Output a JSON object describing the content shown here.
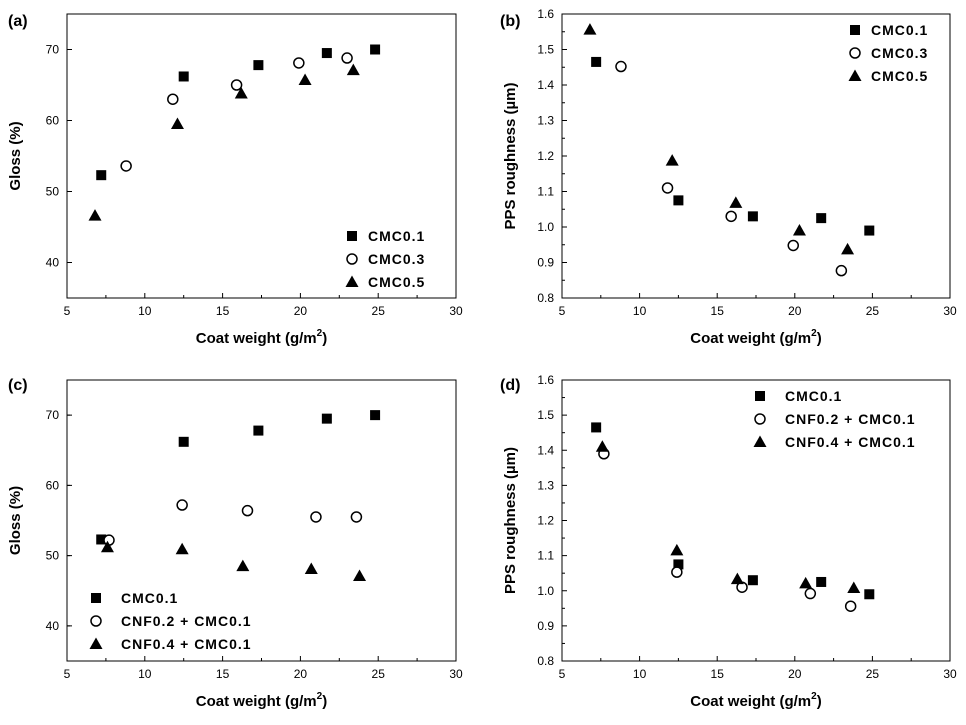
{
  "chart_data": [
    {
      "panel": "(a)",
      "type": "scatter",
      "xlabel": "Coat weight (g/m",
      "xlabel_sup": "2",
      "xlabel_end": ")",
      "ylabel": "Gloss (%)",
      "xlim": [
        5,
        30
      ],
      "ylim": [
        35,
        75
      ],
      "xticks": [
        5,
        10,
        15,
        20,
        25,
        30
      ],
      "yticks": [
        40,
        50,
        60,
        70
      ],
      "legend_position": "bottom-right",
      "series": [
        {
          "name": "CMC0.1",
          "marker": "square",
          "x": [
            7.2,
            12.5,
            17.3,
            21.7,
            24.8
          ],
          "y": [
            52.3,
            66.2,
            67.8,
            69.5,
            70.0
          ]
        },
        {
          "name": "CMC0.3",
          "marker": "circle",
          "x": [
            8.8,
            11.8,
            15.9,
            19.9,
            23.0
          ],
          "y": [
            53.6,
            63.0,
            65.0,
            68.1,
            68.8
          ]
        },
        {
          "name": "CMC0.5",
          "marker": "triangle",
          "x": [
            6.8,
            12.1,
            16.2,
            20.3,
            23.4
          ],
          "y": [
            46.6,
            59.5,
            63.8,
            65.7,
            67.1
          ]
        }
      ]
    },
    {
      "panel": "(b)",
      "type": "scatter",
      "xlabel": "Coat weight (g/m",
      "xlabel_sup": "2",
      "xlabel_end": ")",
      "ylabel": "PPS roughness (µm)",
      "xlim": [
        5,
        30
      ],
      "ylim": [
        0.8,
        1.6
      ],
      "xticks": [
        5,
        10,
        15,
        20,
        25,
        30
      ],
      "yticks": [
        0.8,
        0.9,
        1.0,
        1.1,
        1.2,
        1.3,
        1.4,
        1.5,
        1.6
      ],
      "legend_position": "top-right",
      "series": [
        {
          "name": "CMC0.1",
          "marker": "square",
          "x": [
            7.2,
            12.5,
            17.3,
            21.7,
            24.8
          ],
          "y": [
            1.465,
            1.075,
            1.03,
            1.025,
            0.99
          ]
        },
        {
          "name": "CMC0.3",
          "marker": "circle",
          "x": [
            8.8,
            11.8,
            15.9,
            19.9,
            23.0
          ],
          "y": [
            1.452,
            1.11,
            1.03,
            0.948,
            0.877
          ]
        },
        {
          "name": "CMC0.5",
          "marker": "triangle",
          "x": [
            6.8,
            12.1,
            16.2,
            20.3,
            23.4
          ],
          "y": [
            1.556,
            1.187,
            1.068,
            0.99,
            0.937
          ]
        }
      ]
    },
    {
      "panel": "(c)",
      "type": "scatter",
      "xlabel": "Coat weight (g/m",
      "xlabel_sup": "2",
      "xlabel_end": ")",
      "ylabel": "Gloss (%)",
      "xlim": [
        5,
        30
      ],
      "ylim": [
        35,
        75
      ],
      "xticks": [
        5,
        10,
        15,
        20,
        25,
        30
      ],
      "yticks": [
        40,
        50,
        60,
        70
      ],
      "legend_position": "bottom-left",
      "series": [
        {
          "name": "CMC0.1",
          "marker": "square",
          "x": [
            7.2,
            12.5,
            17.3,
            21.7,
            24.8
          ],
          "y": [
            52.3,
            66.2,
            67.8,
            69.5,
            70.0
          ]
        },
        {
          "name": "CNF0.2 + CMC0.1",
          "marker": "circle",
          "x": [
            7.7,
            12.4,
            16.6,
            21.0,
            23.6
          ],
          "y": [
            52.2,
            57.2,
            56.4,
            55.5,
            55.5
          ]
        },
        {
          "name": "CNF0.4 + CMC0.1",
          "marker": "triangle",
          "x": [
            7.6,
            12.4,
            16.3,
            20.7,
            23.8
          ],
          "y": [
            51.2,
            50.9,
            48.5,
            48.1,
            47.1
          ]
        }
      ]
    },
    {
      "panel": "(d)",
      "type": "scatter",
      "xlabel": "Coat weight (g/m",
      "xlabel_sup": "2",
      "xlabel_end": ")",
      "ylabel": "PPS roughness (µm)",
      "xlim": [
        5,
        30
      ],
      "ylim": [
        0.8,
        1.6
      ],
      "xticks": [
        5,
        10,
        15,
        20,
        25,
        30
      ],
      "yticks": [
        0.8,
        0.9,
        1.0,
        1.1,
        1.2,
        1.3,
        1.4,
        1.5,
        1.6
      ],
      "legend_position": "top-left",
      "series": [
        {
          "name": "CMC0.1",
          "marker": "square",
          "x": [
            7.2,
            12.5,
            17.3,
            21.7,
            24.8
          ],
          "y": [
            1.465,
            1.075,
            1.03,
            1.025,
            0.99
          ]
        },
        {
          "name": "CNF0.2 + CMC0.1",
          "marker": "circle",
          "x": [
            7.7,
            12.4,
            16.6,
            21.0,
            23.6
          ],
          "y": [
            1.39,
            1.053,
            1.01,
            0.992,
            0.956
          ]
        },
        {
          "name": "CNF0.4 + CMC0.1",
          "marker": "triangle",
          "x": [
            7.6,
            12.4,
            16.3,
            20.7,
            23.8
          ],
          "y": [
            1.41,
            1.115,
            1.033,
            1.021,
            1.008
          ]
        }
      ]
    }
  ]
}
